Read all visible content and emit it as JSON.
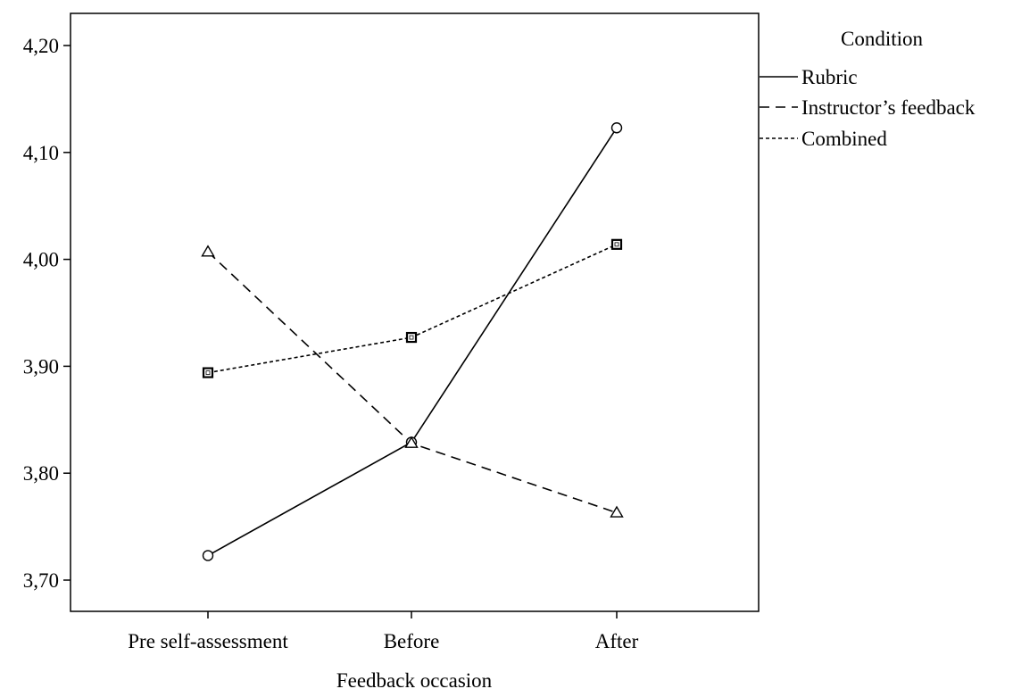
{
  "chart_data": {
    "type": "line",
    "xlabel": "Feedback occasion",
    "ylabel": "",
    "categories": [
      "Pre self-assessment",
      "Before",
      "After"
    ],
    "y_ticks": [
      "3,70",
      "3,80",
      "3,90",
      "4,00",
      "4,10",
      "4,20"
    ],
    "ylim": [
      3.67,
      4.23
    ],
    "grid": false,
    "legend_title": "Condition",
    "legend_position": "right-top",
    "series": [
      {
        "name": "Rubric",
        "style": "solid",
        "marker": "circle",
        "color": "#000000",
        "values": [
          3.723,
          3.829,
          4.123
        ]
      },
      {
        "name": "Instructor’s feedback",
        "style": "dashed",
        "marker": "triangle",
        "color": "#000000",
        "values": [
          4.007,
          3.828,
          3.763
        ]
      },
      {
        "name": "Combined",
        "style": "dotted",
        "marker": "square",
        "color": "#000000",
        "values": [
          3.894,
          3.927,
          4.014
        ]
      }
    ]
  }
}
